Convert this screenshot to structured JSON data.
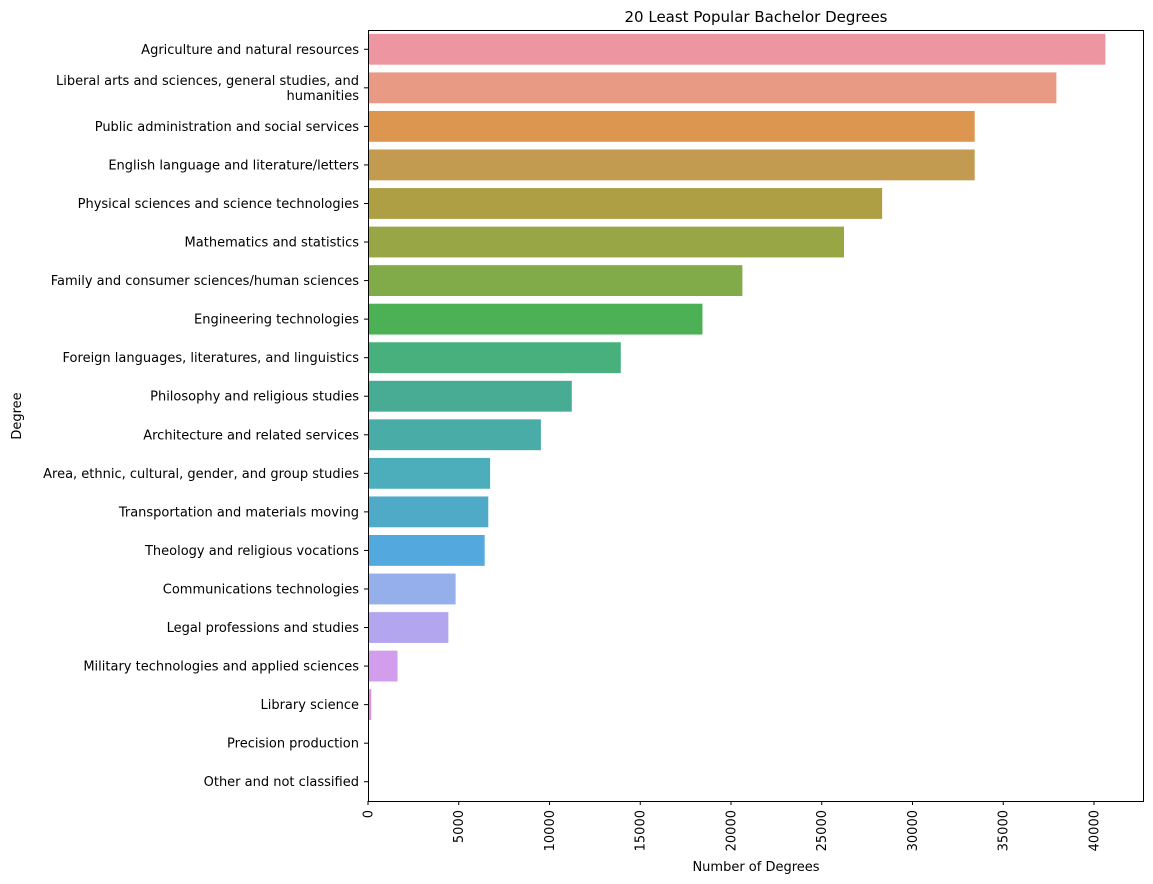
{
  "chart_data": {
    "type": "bar",
    "orientation": "horizontal",
    "title": "20 Least Popular Bachelor Degrees",
    "xlabel": "Number of Degrees",
    "ylabel": "Degree",
    "xlim": [
      0,
      42700
    ],
    "xticks": [
      0,
      5000,
      10000,
      15000,
      20000,
      25000,
      30000,
      35000,
      40000
    ],
    "xtick_labels": [
      "0",
      "5000",
      "10000",
      "15000",
      "20000",
      "25000",
      "30000",
      "35000",
      "40000"
    ],
    "grid": false,
    "legend": "none",
    "categories": [
      [
        "Agriculture and natural resources"
      ],
      [
        "Liberal arts and sciences, general studies, and",
        "humanities"
      ],
      [
        "Public administration and social services"
      ],
      [
        "English language and literature/letters"
      ],
      [
        "Physical sciences and science technologies"
      ],
      [
        "Mathematics and statistics"
      ],
      [
        "Family and consumer sciences/human sciences"
      ],
      [
        "Engineering technologies"
      ],
      [
        "Foreign languages, literatures, and linguistics"
      ],
      [
        "Philosophy and religious studies"
      ],
      [
        "Architecture and related services"
      ],
      [
        "Area, ethnic, cultural, gender, and group studies"
      ],
      [
        "Transportation and materials moving"
      ],
      [
        "Theology and religious vocations"
      ],
      [
        "Communications technologies"
      ],
      [
        "Legal professions and studies"
      ],
      [
        "Military technologies and applied sciences"
      ],
      [
        "Library science"
      ],
      [
        "Precision production"
      ],
      [
        "Other and not classified"
      ]
    ],
    "values": [
      40600,
      37900,
      33400,
      33400,
      28300,
      26200,
      20600,
      18400,
      13900,
      11200,
      9500,
      6700,
      6600,
      6400,
      4800,
      4400,
      1600,
      150,
      0,
      0
    ],
    "colors": [
      "#ed96a1",
      "#e99a84",
      "#dc964f",
      "#c29b50",
      "#ae9f44",
      "#98a646",
      "#80ab48",
      "#4cb154",
      "#47b07d",
      "#47ac93",
      "#4aaca7",
      "#4baeba",
      "#4faac7",
      "#53a8dd",
      "#94afea",
      "#b3a6ee",
      "#d39ded",
      "#e690d8",
      "#ea8fc4",
      "#ec91b2"
    ]
  }
}
